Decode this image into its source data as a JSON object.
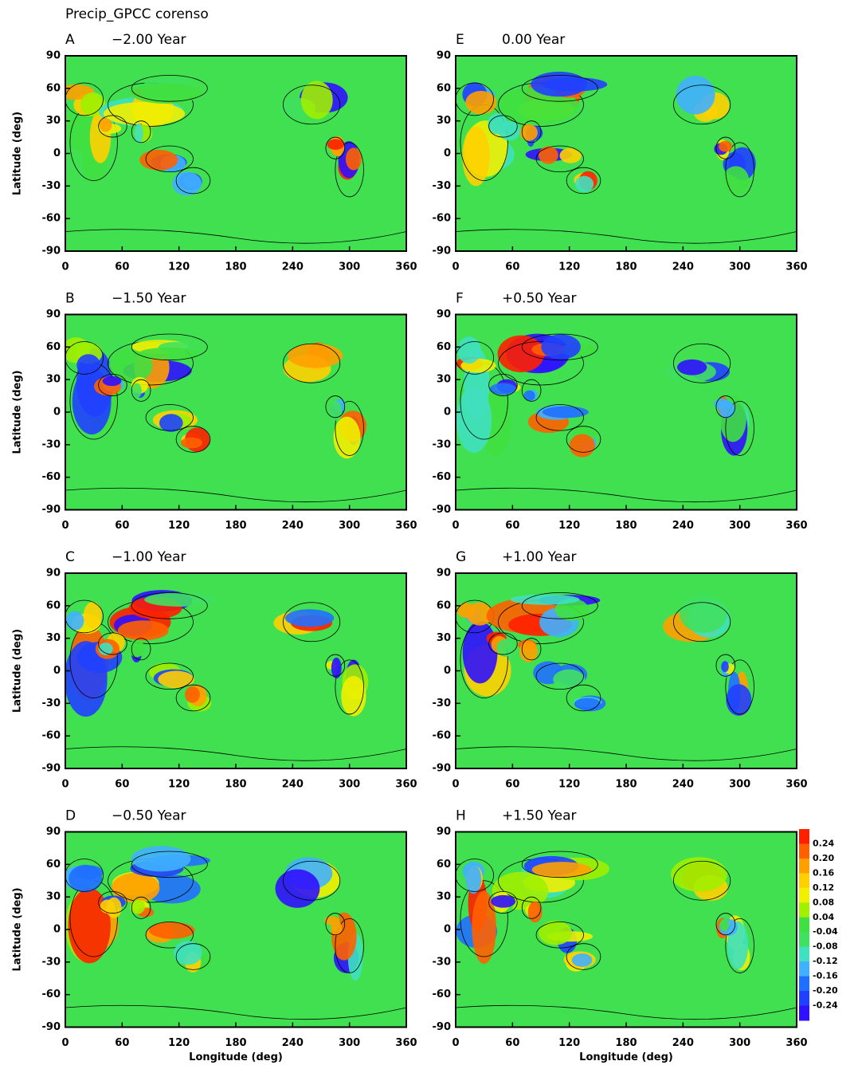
{
  "title": "Precip_GPCC corenso",
  "ylabel": "Latitude (deg)",
  "xlabel": "Longitude (deg)",
  "panels": [
    {
      "letter": "A",
      "label": "−2.00 Year"
    },
    {
      "letter": "B",
      "label": "−1.50 Year"
    },
    {
      "letter": "C",
      "label": "−1.00 Year"
    },
    {
      "letter": "D",
      "label": "−0.50 Year"
    },
    {
      "letter": "E",
      "label": "0.00 Year"
    },
    {
      "letter": "F",
      "label": "+0.50 Year"
    },
    {
      "letter": "G",
      "label": "+1.00 Year"
    },
    {
      "letter": "H",
      "label": "+1.50 Year"
    }
  ],
  "xlim": [
    0,
    360
  ],
  "xticks": [
    0,
    60,
    120,
    180,
    240,
    300,
    360
  ],
  "ylim": [
    -90,
    90
  ],
  "yticks": [
    90,
    60,
    30,
    0,
    -30,
    -60,
    -90
  ],
  "colorbar": {
    "colors": [
      "#ff2000",
      "#ff6000",
      "#ffa000",
      "#ffd000",
      "#f0f000",
      "#a0f000",
      "#40e040",
      "#40e060",
      "#40e0c0",
      "#40b0ff",
      "#2070ff",
      "#2040ff",
      "#3010ff"
    ],
    "ticks": [
      0.24,
      {
        "value": 0.2,
        "label": "0.20"
      },
      0.16,
      0.12,
      0.08,
      0.04,
      -0.04,
      -0.08,
      -0.12,
      -0.16,
      {
        "value": -0.2,
        "label": "-0.20"
      },
      -0.24
    ]
  }
}
